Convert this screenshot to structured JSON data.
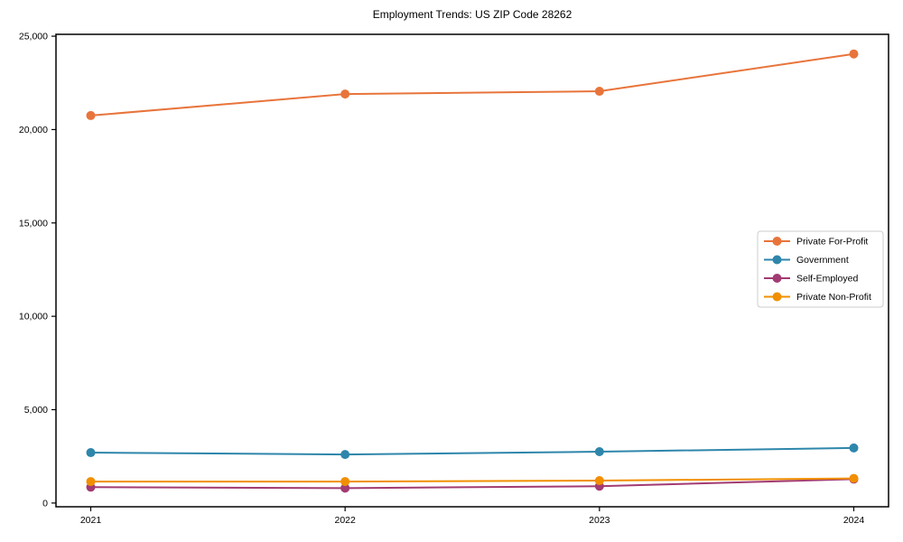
{
  "page": {
    "background": "#ffffff",
    "text_color": "#000000"
  },
  "chart_data": {
    "type": "line",
    "title": "Employment Trends: US ZIP Code 28262",
    "xlabel": "",
    "ylabel": "",
    "grid": false,
    "legend_position": "center-right",
    "x": [
      2021,
      2022,
      2023,
      2024
    ],
    "x_tick_labels": [
      "2021",
      "2022",
      "2023",
      "2024"
    ],
    "y_tick_values": [
      0,
      5000,
      10000,
      15000,
      20000,
      25000
    ],
    "y_tick_labels": [
      "0",
      "5,000",
      "10,000",
      "15,000",
      "20,000",
      "25,000"
    ],
    "ylim": [
      -200,
      25100
    ],
    "marker": "circle",
    "series": [
      {
        "name": "Private For-Profit",
        "color": "#E8743B",
        "values": [
          20750,
          21900,
          22050,
          24050
        ]
      },
      {
        "name": "Government",
        "color": "#2E86AB",
        "values": [
          2700,
          2600,
          2750,
          2950
        ]
      },
      {
        "name": "Self-Employed",
        "color": "#A23B72",
        "values": [
          850,
          800,
          900,
          1280
        ]
      },
      {
        "name": "Private Non-Profit",
        "color": "#F18F01",
        "values": [
          1150,
          1150,
          1200,
          1320
        ]
      }
    ],
    "legend": {
      "border_color": "#cccccc",
      "background": "#ffffff"
    }
  }
}
